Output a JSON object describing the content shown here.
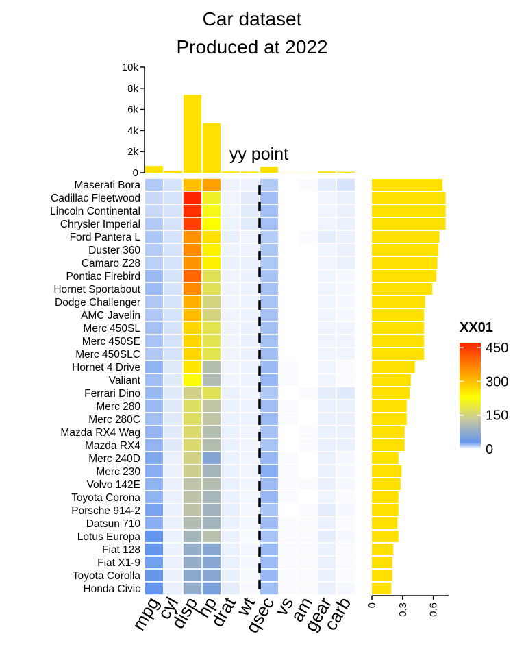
{
  "title": [
    "Car dataset",
    "Produced at 2022"
  ],
  "chart_data": {
    "type": "heatmap",
    "rows": [
      "Maserati Bora",
      "Cadillac Fleetwood",
      "Lincoln Continental",
      "Chrysler Imperial",
      "Ford Pantera L",
      "Duster 360",
      "Camaro Z28",
      "Pontiac Firebird",
      "Hornet Sportabout",
      "Dodge Challenger",
      "AMC Javelin",
      "Merc 450SL",
      "Merc 450SE",
      "Merc 450SLC",
      "Hornet 4 Drive",
      "Valiant",
      "Ferrari Dino",
      "Merc 280",
      "Merc 280C",
      "Mazda RX4 Wag",
      "Mazda RX4",
      "Merc 240D",
      "Merc 230",
      "Volvo 142E",
      "Toyota Corona",
      "Porsche 914-2",
      "Datsun 710",
      "Lotus Europa",
      "Fiat 128",
      "Fiat X1-9",
      "Toyota Corolla",
      "Honda Civic"
    ],
    "columns": [
      "mpg",
      "cyl",
      "disp",
      "hp",
      "drat",
      "wt",
      "qsec",
      "vs",
      "am",
      "gear",
      "carb"
    ],
    "values": [
      [
        15.0,
        8,
        301,
        335,
        3.54,
        3.57,
        14.6,
        0,
        1,
        5,
        8
      ],
      [
        10.4,
        8,
        472,
        205,
        2.93,
        5.25,
        17.98,
        0,
        0,
        3,
        4
      ],
      [
        10.4,
        8,
        460,
        215,
        3.0,
        5.424,
        17.82,
        0,
        0,
        3,
        4
      ],
      [
        14.7,
        8,
        440,
        230,
        3.23,
        5.345,
        17.42,
        0,
        0,
        3,
        4
      ],
      [
        15.8,
        8,
        351,
        264,
        4.22,
        3.17,
        14.5,
        0,
        1,
        5,
        4
      ],
      [
        14.3,
        8,
        360,
        245,
        3.21,
        3.57,
        15.84,
        0,
        0,
        3,
        4
      ],
      [
        13.3,
        8,
        350,
        245,
        3.73,
        3.84,
        15.41,
        0,
        0,
        3,
        4
      ],
      [
        19.2,
        8,
        400,
        175,
        3.08,
        3.845,
        17.05,
        0,
        0,
        3,
        2
      ],
      [
        18.7,
        8,
        360,
        175,
        3.15,
        3.44,
        17.02,
        0,
        0,
        3,
        2
      ],
      [
        15.5,
        8,
        318,
        150,
        2.76,
        3.52,
        16.87,
        0,
        0,
        3,
        2
      ],
      [
        15.2,
        8,
        304,
        150,
        3.15,
        3.435,
        17.3,
        0,
        0,
        3,
        2
      ],
      [
        17.3,
        8,
        275.8,
        180,
        3.07,
        3.73,
        17.6,
        0,
        0,
        3,
        3
      ],
      [
        16.4,
        8,
        275.8,
        180,
        3.07,
        4.07,
        17.4,
        0,
        0,
        3,
        3
      ],
      [
        15.2,
        8,
        275.8,
        180,
        3.07,
        3.78,
        18.0,
        0,
        0,
        3,
        3
      ],
      [
        21.4,
        6,
        258,
        110,
        3.08,
        3.215,
        19.44,
        1,
        0,
        3,
        1
      ],
      [
        18.1,
        6,
        225,
        105,
        2.76,
        3.46,
        20.22,
        1,
        0,
        3,
        1
      ],
      [
        19.7,
        6,
        145,
        175,
        3.62,
        2.77,
        15.5,
        0,
        1,
        5,
        6
      ],
      [
        19.2,
        6,
        167.6,
        123,
        3.92,
        3.44,
        18.3,
        1,
        0,
        4,
        4
      ],
      [
        17.8,
        6,
        167.6,
        123,
        3.92,
        3.44,
        18.9,
        1,
        0,
        4,
        4
      ],
      [
        21.0,
        6,
        160,
        110,
        3.9,
        2.875,
        17.02,
        0,
        1,
        4,
        4
      ],
      [
        21.0,
        6,
        160,
        110,
        3.9,
        2.62,
        16.46,
        0,
        1,
        4,
        4
      ],
      [
        24.4,
        4,
        146.7,
        62,
        3.69,
        3.19,
        20.0,
        1,
        0,
        4,
        2
      ],
      [
        22.8,
        4,
        140.8,
        95,
        3.92,
        3.15,
        22.9,
        1,
        0,
        4,
        2
      ],
      [
        21.4,
        4,
        121,
        109,
        4.11,
        2.78,
        18.6,
        1,
        1,
        4,
        2
      ],
      [
        21.5,
        4,
        120.1,
        97,
        3.7,
        2.465,
        20.01,
        1,
        0,
        3,
        1
      ],
      [
        26.0,
        4,
        120.3,
        91,
        4.43,
        2.14,
        16.7,
        0,
        1,
        5,
        2
      ],
      [
        22.8,
        4,
        108,
        93,
        3.85,
        2.32,
        18.61,
        1,
        1,
        4,
        1
      ],
      [
        30.4,
        4,
        95.1,
        113,
        3.77,
        1.513,
        16.9,
        1,
        1,
        5,
        2
      ],
      [
        32.4,
        4,
        78.7,
        66,
        4.08,
        2.2,
        19.47,
        1,
        1,
        4,
        1
      ],
      [
        27.3,
        4,
        79,
        66,
        4.08,
        1.935,
        18.9,
        1,
        1,
        4,
        1
      ],
      [
        33.9,
        4,
        71.1,
        65,
        4.22,
        1.835,
        19.9,
        1,
        1,
        4,
        1
      ],
      [
        30.4,
        4,
        75.7,
        52,
        4.93,
        1.615,
        18.52,
        1,
        1,
        4,
        2
      ]
    ],
    "top_barplot": {
      "type": "bar",
      "categories": [
        "mpg",
        "cyl",
        "disp",
        "hp",
        "drat",
        "wt",
        "qsec",
        "vs",
        "am",
        "gear",
        "carb"
      ],
      "values": [
        642.9,
        198,
        7383.1,
        4694,
        115.09,
        102.952,
        571.16,
        14,
        13,
        118,
        90
      ],
      "ylim": [
        0,
        10000
      ],
      "ticks": [
        0,
        2000,
        4000,
        6000,
        8000,
        10000
      ],
      "tick_labels": [
        "0",
        "2k",
        "4k",
        "6k",
        "8k",
        "10k"
      ],
      "color": "#FFE000"
    },
    "right_barplot": {
      "type": "bar",
      "orientation": "horizontal",
      "values": [
        0.69,
        0.72,
        0.72,
        0.72,
        0.66,
        0.65,
        0.64,
        0.63,
        0.59,
        0.52,
        0.51,
        0.51,
        0.51,
        0.51,
        0.42,
        0.38,
        0.37,
        0.34,
        0.34,
        0.32,
        0.32,
        0.26,
        0.29,
        0.28,
        0.26,
        0.26,
        0.25,
        0.26,
        0.21,
        0.2,
        0.2,
        0.19
      ],
      "xlim": [
        0,
        0.75
      ],
      "ticks": [
        0,
        0.3,
        0.6
      ],
      "tick_labels": [
        "0",
        "0.3",
        "0.6"
      ],
      "color": "#FFE000"
    },
    "annotation": {
      "text": "yy point",
      "line_after_column": "wt"
    },
    "colorscale": {
      "title": "XX01",
      "range": [
        0,
        472
      ],
      "ticks": [
        0,
        150,
        300,
        450
      ],
      "tick_labels": [
        "0",
        "150",
        "300",
        "450"
      ],
      "stops": [
        {
          "v": 0,
          "c": "#FFFFFF"
        },
        {
          "v": 30,
          "c": "#6495ED"
        },
        {
          "v": 130,
          "c": "#C8C8A0"
        },
        {
          "v": 230,
          "c": "#FFFF00"
        },
        {
          "v": 330,
          "c": "#FFA500"
        },
        {
          "v": 472,
          "c": "#FF2400"
        }
      ]
    }
  }
}
